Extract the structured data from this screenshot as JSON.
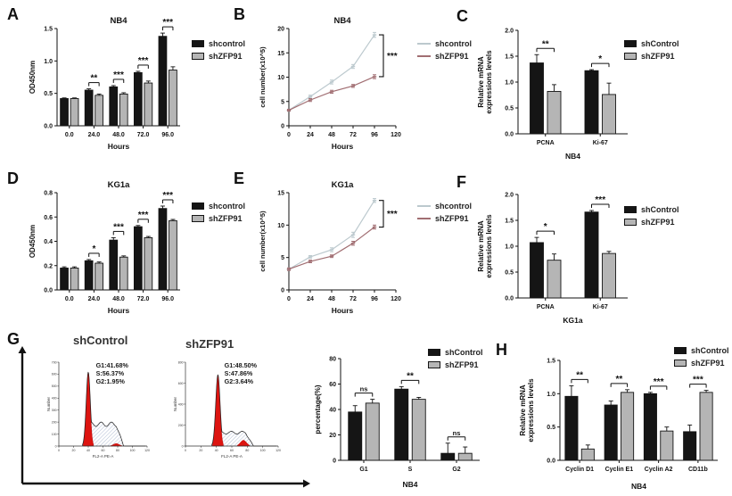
{
  "panels": {
    "A": {
      "label": "A"
    },
    "B": {
      "label": "B"
    },
    "C": {
      "label": "C"
    },
    "D": {
      "label": "D"
    },
    "E": {
      "label": "E"
    },
    "F": {
      "label": "F"
    },
    "G": {
      "label": "G"
    },
    "H": {
      "label": "H"
    }
  },
  "colors": {
    "bar_black": "#151515",
    "bar_gray": "#b5b5b5",
    "line_control": "#bcc9ce",
    "line_zfp91": "#a16e72",
    "flow_red": "#dd1410",
    "flow_hatch": "#9cabc8"
  },
  "chart_data": [
    {
      "panel": "A",
      "type": "bar",
      "title": "NB4",
      "xlabel": "Hours",
      "ylabel": "OD450nm",
      "categories": [
        "0.0",
        "24.0",
        "48.0",
        "72.0",
        "96.0"
      ],
      "ylim": [
        0,
        1.5
      ],
      "yticks": [
        "0.0",
        "0.5",
        "1.0",
        "1.5"
      ],
      "series": [
        {
          "name": "shcontrol",
          "values": [
            0.42,
            0.55,
            0.6,
            0.82,
            1.38
          ],
          "errors": [
            0.01,
            0.02,
            0.02,
            0.02,
            0.05
          ],
          "fill": "#151515"
        },
        {
          "name": "shZFP91",
          "values": [
            0.42,
            0.47,
            0.49,
            0.66,
            0.86
          ],
          "errors": [
            0.01,
            0.02,
            0.02,
            0.03,
            0.05
          ],
          "fill": "#b5b5b5",
          "stroke": "#151515"
        }
      ],
      "significance": [
        {
          "category": "24.0",
          "label": "**"
        },
        {
          "category": "48.0",
          "label": "***"
        },
        {
          "category": "72.0",
          "label": "***"
        },
        {
          "category": "96.0",
          "label": "***"
        }
      ]
    },
    {
      "panel": "B",
      "type": "line",
      "title": "NB4",
      "xlabel": "Hours",
      "ylabel": "cell number(x10^5)",
      "x": [
        0,
        24,
        48,
        72,
        96
      ],
      "xlim": [
        0,
        120
      ],
      "xticks": [
        0,
        24,
        48,
        72,
        96,
        120
      ],
      "ylim": [
        0,
        20
      ],
      "yticks": [
        "0",
        "5",
        "10",
        "15",
        "20"
      ],
      "series": [
        {
          "name": "shcontrol",
          "values": [
            3.2,
            6.0,
            9.0,
            12.2,
            18.7
          ],
          "errors": [
            0.2,
            0.3,
            0.4,
            0.4,
            0.5
          ],
          "color": "#bcc9ce"
        },
        {
          "name": "shZFP91",
          "values": [
            3.2,
            5.3,
            7.0,
            8.2,
            10.1
          ],
          "errors": [
            0.2,
            0.3,
            0.3,
            0.3,
            0.4
          ],
          "color": "#a16e72"
        }
      ],
      "significance_bracket": "***"
    },
    {
      "panel": "C",
      "type": "bar",
      "title": "",
      "xlabel": "NB4",
      "ylabel": "Relative mRNA expressions levels",
      "ylabel_lines": [
        "Relative mRNA",
        "expressions levels"
      ],
      "categories": [
        "PCNA",
        "Ki-67"
      ],
      "ylim": [
        0,
        2.0
      ],
      "yticks": [
        "0.0",
        "0.5",
        "1.0",
        "1.5",
        "2.0"
      ],
      "series": [
        {
          "name": "shControl",
          "values": [
            1.37,
            1.22
          ],
          "errors": [
            0.16,
            0.02
          ],
          "fill": "#151515"
        },
        {
          "name": "shZFP91",
          "values": [
            0.82,
            0.76
          ],
          "errors": [
            0.13,
            0.22
          ],
          "fill": "#b5b5b5",
          "stroke": "#151515"
        }
      ],
      "significance": [
        {
          "category": "PCNA",
          "label": "**"
        },
        {
          "category": "Ki-67",
          "label": "*"
        }
      ]
    },
    {
      "panel": "D",
      "type": "bar",
      "title": "KG1a",
      "xlabel": "Hours",
      "ylabel": "OD450nm",
      "categories": [
        "0.0",
        "24.0",
        "48.0",
        "72.0",
        "96.0"
      ],
      "ylim": [
        0,
        0.8
      ],
      "yticks": [
        "0.0",
        "0.2",
        "0.4",
        "0.6",
        "0.8"
      ],
      "series": [
        {
          "name": "shcontrol",
          "values": [
            0.18,
            0.24,
            0.41,
            0.52,
            0.67
          ],
          "errors": [
            0.01,
            0.01,
            0.02,
            0.01,
            0.02
          ],
          "fill": "#151515"
        },
        {
          "name": "shZFP91",
          "values": [
            0.18,
            0.22,
            0.27,
            0.43,
            0.57
          ],
          "errors": [
            0.01,
            0.01,
            0.01,
            0.01,
            0.01
          ],
          "fill": "#b5b5b5",
          "stroke": "#151515"
        }
      ],
      "significance": [
        {
          "category": "24.0",
          "label": "*"
        },
        {
          "category": "48.0",
          "label": "***"
        },
        {
          "category": "72.0",
          "label": "***"
        },
        {
          "category": "96.0",
          "label": "***"
        }
      ]
    },
    {
      "panel": "E",
      "type": "line",
      "title": "KG1a",
      "xlabel": "Hours",
      "ylabel": "cell number(x10^5)",
      "x": [
        0,
        24,
        48,
        72,
        96
      ],
      "xlim": [
        0,
        120
      ],
      "xticks": [
        0,
        24,
        48,
        72,
        96,
        120
      ],
      "ylim": [
        0,
        15
      ],
      "yticks": [
        "0",
        "5",
        "10",
        "15"
      ],
      "series": [
        {
          "name": "shcontrol",
          "values": [
            3.2,
            5.1,
            6.2,
            8.5,
            13.8
          ],
          "errors": [
            0.2,
            0.2,
            0.3,
            0.4,
            0.3
          ],
          "color": "#bcc9ce"
        },
        {
          "name": "shZFP91",
          "values": [
            3.2,
            4.4,
            5.2,
            7.2,
            9.7
          ],
          "errors": [
            0.2,
            0.2,
            0.2,
            0.3,
            0.3
          ],
          "color": "#a16e72"
        }
      ],
      "significance_bracket": "***"
    },
    {
      "panel": "F",
      "type": "bar",
      "title": "",
      "xlabel": "KG1a",
      "ylabel": "Relative mRNA expressions levels",
      "ylabel_lines": [
        "Relative mRNA",
        "expressions levels"
      ],
      "categories": [
        "PCNA",
        "Ki-67"
      ],
      "ylim": [
        0,
        2.0
      ],
      "yticks": [
        "0.0",
        "0.5",
        "1.0",
        "1.5",
        "2.0"
      ],
      "series": [
        {
          "name": "shControl",
          "values": [
            1.07,
            1.66
          ],
          "errors": [
            0.1,
            0.03
          ],
          "fill": "#151515"
        },
        {
          "name": "shZFP91",
          "values": [
            0.73,
            0.86
          ],
          "errors": [
            0.12,
            0.04
          ],
          "fill": "#b5b5b5",
          "stroke": "#151515"
        }
      ],
      "significance": [
        {
          "category": "PCNA",
          "label": "*"
        },
        {
          "category": "Ki-67",
          "label": "***"
        }
      ]
    },
    {
      "panel": "G1",
      "type": "flow",
      "title": "shControl",
      "stats": {
        "G1": "41.68%",
        "S": "56.37%",
        "G2": "1.95%"
      },
      "xlabel": "FL2-A PE-A",
      "ylabel": "Number",
      "xticks": [
        0,
        20,
        40,
        60,
        80,
        100,
        120
      ],
      "ytick_labels": [
        "0",
        "100",
        "200",
        "300",
        "400",
        "500",
        "600",
        "700"
      ],
      "peak_x": 40,
      "peak_h": 0.88,
      "s_h": 0.26,
      "g2_x": 78,
      "g2_h": 0.03
    },
    {
      "panel": "G2",
      "type": "flow",
      "title": "shZFP91",
      "stats": {
        "G1": "48.50%",
        "S": "47.86%",
        "G2": "3.64%"
      },
      "xlabel": "FL2-A PE-A",
      "ylabel": "Number",
      "xticks": [
        0,
        20,
        40,
        60,
        80,
        100,
        120
      ],
      "ytick_labels": [
        "0",
        "200",
        "400",
        "600",
        "800"
      ],
      "peak_x": 42,
      "peak_h": 0.85,
      "s_h": 0.16,
      "g2_x": 75,
      "g2_h": 0.07
    },
    {
      "panel": "G",
      "type": "bar",
      "title": "",
      "xlabel": "NB4",
      "ylabel": "percentage(%)",
      "categories": [
        "G1",
        "S",
        "G2"
      ],
      "ylim": [
        0,
        80
      ],
      "yticks": [
        "0",
        "20",
        "40",
        "60",
        "80"
      ],
      "series": [
        {
          "name": "shControl",
          "values": [
            38,
            56,
            5.5
          ],
          "errors": [
            5,
            2,
            8
          ],
          "fill": "#151515"
        },
        {
          "name": "shZFP91",
          "values": [
            45,
            48,
            5.5
          ],
          "errors": [
            3,
            1.5,
            5
          ],
          "fill": "#b5b5b5",
          "stroke": "#151515"
        }
      ],
      "significance": [
        {
          "category": "G1",
          "label": "ns"
        },
        {
          "category": "S",
          "label": "**"
        },
        {
          "category": "G2",
          "label": "ns"
        }
      ]
    },
    {
      "panel": "H",
      "type": "bar",
      "title": "",
      "xlabel": "NB4",
      "ylabel": "Relative mRNA expressions levels",
      "ylabel_lines": [
        "Relative mRNA",
        "expressions levels"
      ],
      "categories": [
        "Cyclin D1",
        "Cyclin E1",
        "Cyclin A2",
        "CD11b"
      ],
      "ylim": [
        0,
        1.5
      ],
      "yticks": [
        "0.0",
        "0.5",
        "1.0",
        "1.5"
      ],
      "series": [
        {
          "name": "shControl",
          "values": [
            0.96,
            0.83,
            1.0,
            0.43
          ],
          "errors": [
            0.16,
            0.06,
            0.02,
            0.1
          ],
          "fill": "#151515"
        },
        {
          "name": "shZFP91",
          "values": [
            0.17,
            1.02,
            0.44,
            1.02
          ],
          "errors": [
            0.06,
            0.04,
            0.06,
            0.03
          ],
          "fill": "#b5b5b5",
          "stroke": "#151515"
        }
      ],
      "significance": [
        {
          "category": "Cyclin D1",
          "label": "**"
        },
        {
          "category": "Cyclin E1",
          "label": "**"
        },
        {
          "category": "Cyclin A2",
          "label": "***"
        },
        {
          "category": "CD11b",
          "label": "***"
        }
      ]
    }
  ]
}
